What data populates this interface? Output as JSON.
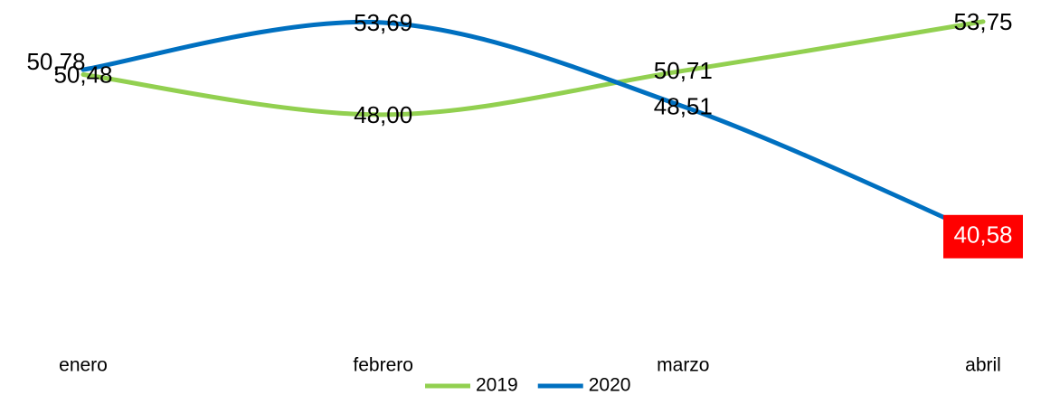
{
  "chart_data": {
    "type": "line",
    "categories": [
      "enero",
      "febrero",
      "marzo",
      "abril"
    ],
    "ylim": [
      38,
      55
    ],
    "legend": "bottom",
    "series": [
      {
        "name": "2019",
        "color": "#92d050",
        "values": [
          50.48,
          48.0,
          50.71,
          53.75
        ],
        "value_labels": [
          "50,48",
          "48,00",
          "50,71",
          "53,75"
        ]
      },
      {
        "name": "2020",
        "color": "#0070c0",
        "values": [
          50.78,
          53.69,
          48.51,
          40.58
        ],
        "value_labels": [
          "50,78",
          "53,69",
          "48,51",
          "40,58"
        ]
      }
    ]
  }
}
